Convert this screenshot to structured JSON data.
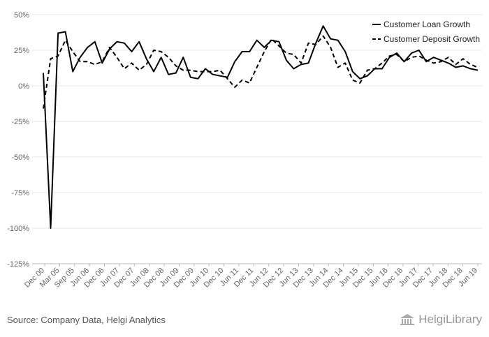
{
  "chart_data": {
    "type": "line",
    "title": "",
    "xlabel": "",
    "ylabel": "",
    "ylim": [
      -125,
      50
    ],
    "ytick_labels": [
      "50%",
      "25%",
      "0%",
      "-25%",
      "-50%",
      "-75%",
      "-100%",
      "-125%"
    ],
    "y_ticks": [
      50,
      25,
      0,
      -25,
      -50,
      -75,
      -100,
      -125
    ],
    "x_tick_labels": [
      "Dec 00",
      "Mar 05",
      "Sep 05",
      "Jun 06",
      "Dec 06",
      "Jun 07",
      "Dec 07",
      "Jun 08",
      "Dec 08",
      "Jun 09",
      "Dec 09",
      "Jun 10",
      "Dec 10",
      "Jun 11",
      "Dec 11",
      "Jun 12",
      "Dec 12",
      "Jun 13",
      "Dec 13",
      "Jun 14",
      "Dec 14",
      "Jun 15",
      "Dec 15",
      "Jun 16",
      "Dec 16",
      "Jun 17",
      "Dec 17",
      "Jun 18",
      "Dec 18",
      "Jun 19"
    ],
    "grid": true,
    "legend_position": "top-right",
    "series": [
      {
        "name": "Customer Loan Growth",
        "style": "solid",
        "values": [
          9,
          -100,
          37,
          38,
          10,
          20,
          27,
          31,
          16,
          26,
          31,
          30,
          24,
          31,
          19,
          10,
          20,
          8,
          9,
          20,
          6,
          5,
          12,
          8,
          7,
          6,
          17,
          24,
          24,
          32,
          27,
          32,
          31,
          18,
          12,
          15,
          16,
          30,
          42,
          33,
          32,
          24,
          10,
          5,
          7,
          12,
          12,
          20,
          23,
          17,
          23,
          25,
          17,
          20,
          18,
          16,
          13,
          14,
          12,
          11
        ]
      },
      {
        "name": "Customer Deposit Growth",
        "style": "dashed",
        "values": [
          -16,
          19,
          21,
          32,
          24,
          17,
          17,
          15,
          17,
          27,
          20,
          12,
          16,
          11,
          15,
          25,
          24,
          20,
          14,
          11,
          11,
          10,
          10,
          10,
          11,
          5,
          -1,
          4,
          2,
          13,
          24,
          33,
          28,
          23,
          22,
          16,
          30,
          29,
          35,
          27,
          13,
          16,
          4,
          2,
          11,
          12,
          16,
          21,
          22,
          17,
          20,
          21,
          18,
          16,
          17,
          20,
          15,
          19,
          15,
          13
        ]
      }
    ]
  },
  "footer": {
    "source": "Source: Company Data, Helgi Analytics",
    "logo_text": "HelgiLibrary"
  }
}
